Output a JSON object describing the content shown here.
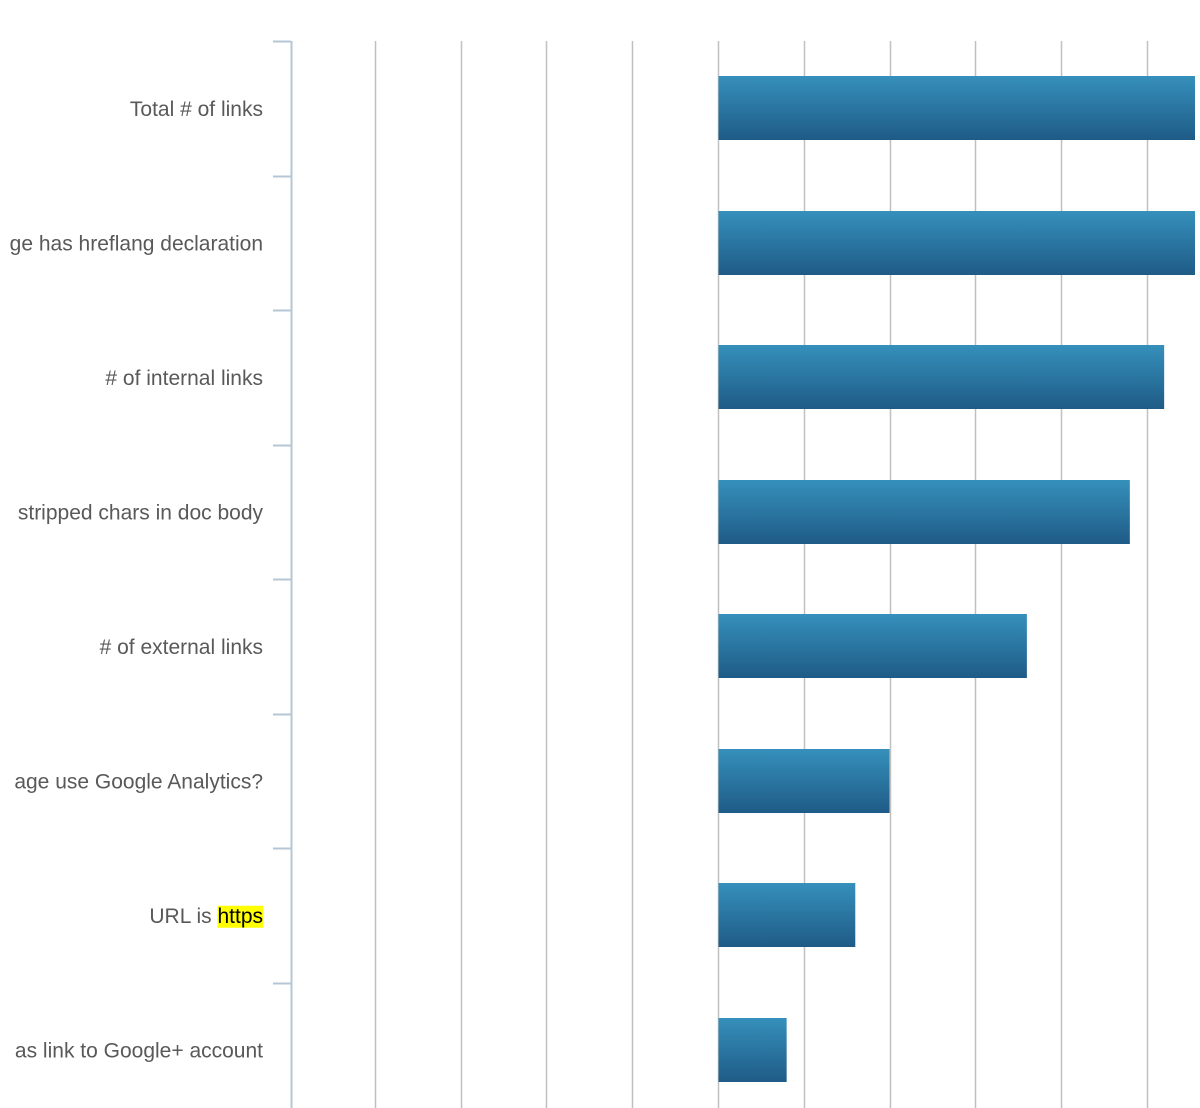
{
  "chart_data": {
    "type": "bar",
    "orientation": "horizontal",
    "title": "",
    "xlabel": "",
    "ylabel": "",
    "categories": [
      "Total # of links",
      "Page has hreflang declaration",
      "# of internal links",
      "# of stripped chars in doc body",
      "# of external links",
      "Does the page use Google Analytics?",
      "URL is https",
      "Page has link to Google+ account"
    ],
    "visible_labels": [
      "Total # of links",
      "ge has hreflang declaration",
      "# of internal links",
      "stripped chars in doc body",
      "# of external links",
      "age use Google Analytics?",
      "URL is https",
      "as link to Google+ account"
    ],
    "values": [
      0.057,
      0.057,
      0.052,
      0.048,
      0.036,
      0.02,
      0.016,
      0.008
    ],
    "xlim": [
      -0.05,
      0.057
    ],
    "baseline": 0,
    "gridline_step": 0.01,
    "grid": true,
    "legend": "none",
    "highlight": {
      "category_index": 6,
      "text": "https",
      "color": "#ffff00"
    },
    "colors": {
      "bar_top": "#3590bb",
      "bar_bottom": "#1f5b87",
      "gridline": "#c0c0c0",
      "axis": "#b5c6d6",
      "label": "#595959"
    }
  }
}
